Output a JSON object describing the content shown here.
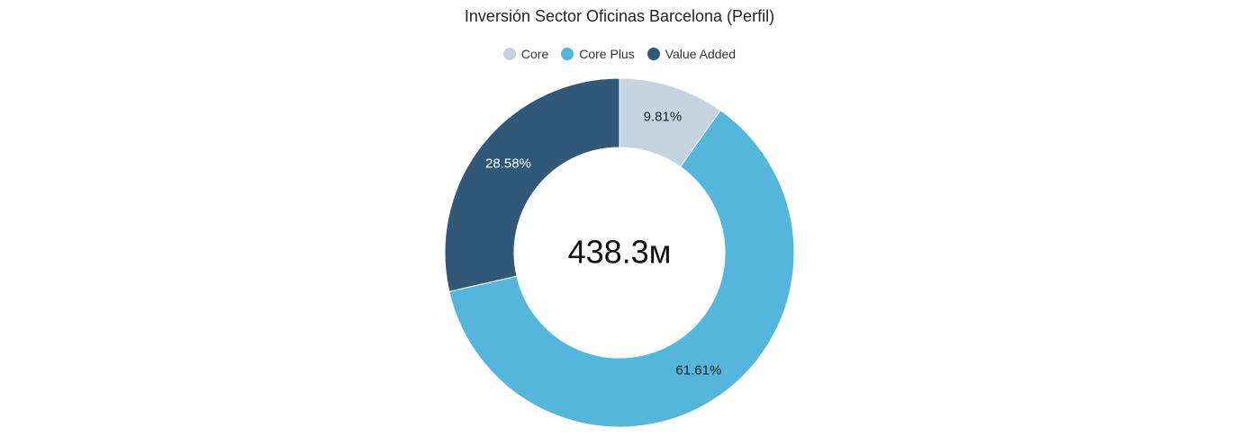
{
  "chart_data": {
    "type": "pie",
    "variant": "donut",
    "title": "Inversión Sector Oficinas Barcelona (Perfil)",
    "center_text": "438.3м",
    "legend_position": "top",
    "slices": [
      {
        "name": "Core",
        "value": 9.81,
        "label": "9.81%",
        "color": "#c6d4e1",
        "label_color": "#222222"
      },
      {
        "name": "Core Plus",
        "value": 61.61,
        "label": "61.61%",
        "color": "#53b6da",
        "label_color": "#222222"
      },
      {
        "name": "Value Added",
        "value": 28.58,
        "label": "28.58%",
        "color": "#325878",
        "label_color": "#ffffff"
      }
    ]
  }
}
